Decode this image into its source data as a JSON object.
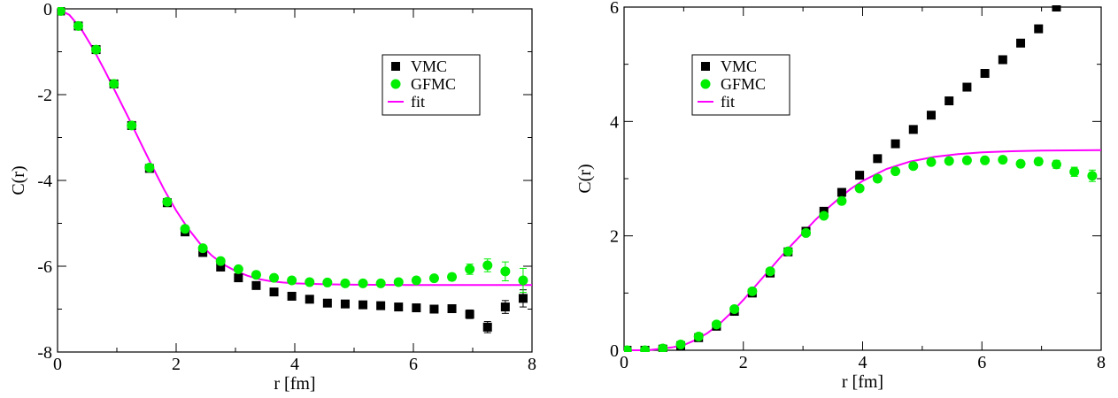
{
  "chart_data": [
    {
      "type": "scatter",
      "xlabel": "r [fm]",
      "ylabel": "C(r)",
      "xlim": [
        0,
        8
      ],
      "ylim": [
        -8,
        0
      ],
      "xticks": [
        0,
        2,
        4,
        6,
        8
      ],
      "yticks": [
        -8,
        -6,
        -4,
        -2,
        0
      ],
      "xtick_labels": [
        "0",
        "2",
        "4",
        "6",
        "8"
      ],
      "ytick_labels": [
        "-8",
        "-6",
        "-4",
        "-2",
        "0"
      ],
      "grid": false,
      "legend": "upper-right",
      "series": [
        {
          "name": "VMC",
          "kind": "markers",
          "marker": "square",
          "color": "#000000",
          "points": [
            [
              0.05,
              -0.05,
              0.02
            ],
            [
              0.35,
              -0.4,
              0.02
            ],
            [
              0.65,
              -0.95,
              0.02
            ],
            [
              0.95,
              -1.75,
              0.02
            ],
            [
              1.25,
              -2.72,
              0.02
            ],
            [
              1.55,
              -3.72,
              0.02
            ],
            [
              1.85,
              -4.52,
              0.02
            ],
            [
              2.15,
              -5.2,
              0.03
            ],
            [
              2.45,
              -5.68,
              0.03
            ],
            [
              2.75,
              -6.02,
              0.03
            ],
            [
              3.05,
              -6.27,
              0.03
            ],
            [
              3.35,
              -6.45,
              0.03
            ],
            [
              3.65,
              -6.6,
              0.03
            ],
            [
              3.95,
              -6.7,
              0.04
            ],
            [
              4.25,
              -6.77,
              0.04
            ],
            [
              4.55,
              -6.86,
              0.04
            ],
            [
              4.85,
              -6.88,
              0.04
            ],
            [
              5.15,
              -6.9,
              0.04
            ],
            [
              5.45,
              -6.92,
              0.04
            ],
            [
              5.75,
              -6.95,
              0.05
            ],
            [
              6.05,
              -6.97,
              0.05
            ],
            [
              6.35,
              -7.0,
              0.06
            ],
            [
              6.65,
              -6.99,
              0.07
            ],
            [
              6.95,
              -7.12,
              0.1
            ],
            [
              7.25,
              -7.42,
              0.13
            ],
            [
              7.55,
              -6.95,
              0.15
            ],
            [
              7.85,
              -6.75,
              0.2
            ]
          ]
        },
        {
          "name": "GFMC",
          "kind": "markers",
          "marker": "circle",
          "color": "#00ee00",
          "points": [
            [
              0.05,
              -0.05,
              0.02
            ],
            [
              0.35,
              -0.4,
              0.02
            ],
            [
              0.65,
              -0.95,
              0.02
            ],
            [
              0.95,
              -1.75,
              0.02
            ],
            [
              1.25,
              -2.72,
              0.02
            ],
            [
              1.55,
              -3.7,
              0.02
            ],
            [
              1.85,
              -4.5,
              0.02
            ],
            [
              2.15,
              -5.13,
              0.03
            ],
            [
              2.45,
              -5.58,
              0.03
            ],
            [
              2.75,
              -5.88,
              0.03
            ],
            [
              3.05,
              -6.07,
              0.03
            ],
            [
              3.35,
              -6.2,
              0.03
            ],
            [
              3.65,
              -6.27,
              0.03
            ],
            [
              3.95,
              -6.33,
              0.03
            ],
            [
              4.25,
              -6.37,
              0.04
            ],
            [
              4.55,
              -6.38,
              0.04
            ],
            [
              4.85,
              -6.4,
              0.04
            ],
            [
              5.15,
              -6.4,
              0.04
            ],
            [
              5.45,
              -6.4,
              0.05
            ],
            [
              5.75,
              -6.37,
              0.05
            ],
            [
              6.05,
              -6.33,
              0.06
            ],
            [
              6.35,
              -6.28,
              0.07
            ],
            [
              6.65,
              -6.25,
              0.08
            ],
            [
              6.95,
              -6.07,
              0.12
            ],
            [
              7.25,
              -5.98,
              0.15
            ],
            [
              7.55,
              -6.12,
              0.22
            ],
            [
              7.85,
              -6.33,
              0.28
            ]
          ]
        },
        {
          "name": "fit",
          "kind": "line",
          "color": "#ff00ff",
          "points": [
            [
              0.0,
              0.0
            ],
            [
              0.2,
              -0.14
            ],
            [
              0.4,
              -0.47
            ],
            [
              0.6,
              -0.93
            ],
            [
              0.8,
              -1.45
            ],
            [
              1.0,
              -2.0
            ],
            [
              1.2,
              -2.55
            ],
            [
              1.4,
              -3.12
            ],
            [
              1.6,
              -3.68
            ],
            [
              1.8,
              -4.22
            ],
            [
              2.0,
              -4.7
            ],
            [
              2.2,
              -5.12
            ],
            [
              2.4,
              -5.47
            ],
            [
              2.6,
              -5.75
            ],
            [
              2.8,
              -5.96
            ],
            [
              3.0,
              -6.11
            ],
            [
              3.2,
              -6.22
            ],
            [
              3.4,
              -6.3
            ],
            [
              3.6,
              -6.35
            ],
            [
              3.8,
              -6.38
            ],
            [
              4.0,
              -6.4
            ],
            [
              4.5,
              -6.42
            ],
            [
              5.0,
              -6.43
            ],
            [
              6.0,
              -6.44
            ],
            [
              7.0,
              -6.44
            ],
            [
              8.0,
              -6.44
            ]
          ]
        }
      ]
    },
    {
      "type": "scatter",
      "xlabel": "r [fm]",
      "ylabel": "C(r)",
      "xlim": [
        0,
        8
      ],
      "ylim": [
        0,
        6
      ],
      "xticks": [
        0,
        2,
        4,
        6,
        8
      ],
      "yticks": [
        0,
        2,
        4,
        6
      ],
      "xtick_labels": [
        "0",
        "2",
        "4",
        "6",
        "8"
      ],
      "ytick_labels": [
        "0",
        "2",
        "4",
        "6"
      ],
      "grid": false,
      "legend": "upper-left",
      "series": [
        {
          "name": "VMC",
          "kind": "markers",
          "marker": "square",
          "color": "#000000",
          "points": [
            [
              0.05,
              0.0,
              0.01
            ],
            [
              0.35,
              0.0,
              0.01
            ],
            [
              0.65,
              0.02,
              0.01
            ],
            [
              0.95,
              0.08,
              0.01
            ],
            [
              1.25,
              0.22,
              0.01
            ],
            [
              1.55,
              0.42,
              0.01
            ],
            [
              1.85,
              0.68,
              0.01
            ],
            [
              2.15,
              1.0,
              0.01
            ],
            [
              2.45,
              1.35,
              0.01
            ],
            [
              2.75,
              1.72,
              0.02
            ],
            [
              3.05,
              2.08,
              0.02
            ],
            [
              3.35,
              2.43,
              0.02
            ],
            [
              3.65,
              2.76,
              0.02
            ],
            [
              3.95,
              3.06,
              0.02
            ],
            [
              4.25,
              3.35,
              0.02
            ],
            [
              4.55,
              3.61,
              0.02
            ],
            [
              4.85,
              3.86,
              0.02
            ],
            [
              5.15,
              4.11,
              0.02
            ],
            [
              5.45,
              4.36,
              0.03
            ],
            [
              5.75,
              4.6,
              0.03
            ],
            [
              6.05,
              4.84,
              0.03
            ],
            [
              6.35,
              5.08,
              0.03
            ],
            [
              6.65,
              5.37,
              0.03
            ],
            [
              6.95,
              5.62,
              0.04
            ],
            [
              7.25,
              6.0,
              0.04
            ]
          ]
        },
        {
          "name": "GFMC",
          "kind": "markers",
          "marker": "circle",
          "color": "#00ee00",
          "points": [
            [
              0.05,
              0.0,
              0.01
            ],
            [
              0.35,
              0.0,
              0.01
            ],
            [
              0.65,
              0.03,
              0.01
            ],
            [
              0.95,
              0.1,
              0.01
            ],
            [
              1.25,
              0.24,
              0.01
            ],
            [
              1.55,
              0.45,
              0.01
            ],
            [
              1.85,
              0.72,
              0.01
            ],
            [
              2.15,
              1.03,
              0.01
            ],
            [
              2.45,
              1.38,
              0.01
            ],
            [
              2.75,
              1.73,
              0.02
            ],
            [
              3.05,
              2.05,
              0.02
            ],
            [
              3.35,
              2.35,
              0.02
            ],
            [
              3.65,
              2.61,
              0.02
            ],
            [
              3.95,
              2.83,
              0.02
            ],
            [
              4.25,
              3.0,
              0.02
            ],
            [
              4.55,
              3.13,
              0.03
            ],
            [
              4.85,
              3.22,
              0.03
            ],
            [
              5.15,
              3.29,
              0.03
            ],
            [
              5.45,
              3.31,
              0.03
            ],
            [
              5.75,
              3.32,
              0.04
            ],
            [
              6.05,
              3.32,
              0.04
            ],
            [
              6.35,
              3.33,
              0.05
            ],
            [
              6.65,
              3.26,
              0.05
            ],
            [
              6.95,
              3.3,
              0.06
            ],
            [
              7.25,
              3.25,
              0.07
            ],
            [
              7.55,
              3.12,
              0.08
            ],
            [
              7.85,
              3.05,
              0.1
            ]
          ]
        },
        {
          "name": "fit",
          "kind": "line",
          "color": "#ff00ff",
          "points": [
            [
              0.0,
              0.0
            ],
            [
              0.4,
              0.0
            ],
            [
              0.8,
              0.05
            ],
            [
              1.0,
              0.09
            ],
            [
              1.2,
              0.18
            ],
            [
              1.4,
              0.3
            ],
            [
              1.6,
              0.46
            ],
            [
              1.8,
              0.66
            ],
            [
              2.0,
              0.88
            ],
            [
              2.2,
              1.12
            ],
            [
              2.4,
              1.36
            ],
            [
              2.6,
              1.6
            ],
            [
              2.8,
              1.83
            ],
            [
              3.0,
              2.05
            ],
            [
              3.2,
              2.27
            ],
            [
              3.4,
              2.47
            ],
            [
              3.6,
              2.65
            ],
            [
              3.8,
              2.82
            ],
            [
              4.0,
              2.96
            ],
            [
              4.4,
              3.17
            ],
            [
              4.8,
              3.3
            ],
            [
              5.2,
              3.38
            ],
            [
              5.6,
              3.43
            ],
            [
              6.0,
              3.46
            ],
            [
              6.5,
              3.48
            ],
            [
              7.0,
              3.49
            ],
            [
              8.0,
              3.5
            ]
          ]
        }
      ]
    }
  ]
}
